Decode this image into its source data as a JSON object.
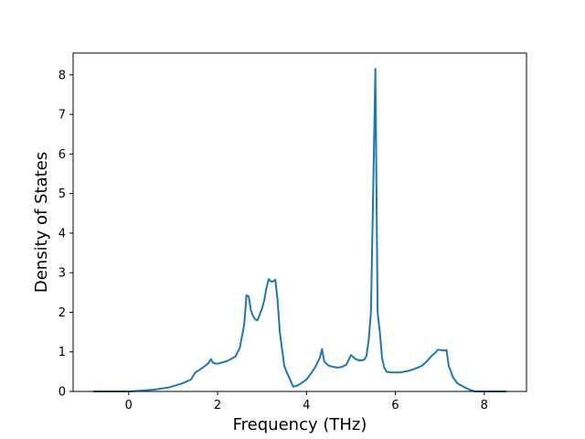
{
  "chart_data": {
    "type": "line",
    "xlabel": "Frequency (THz)",
    "ylabel": "Density of States",
    "xlim": [
      -1.25,
      8.95
    ],
    "ylim": [
      0,
      8.55
    ],
    "x_ticks": [
      0,
      2,
      4,
      6,
      8
    ],
    "y_ticks": [
      0,
      1,
      2,
      3,
      4,
      5,
      6,
      7,
      8
    ],
    "grid": false,
    "legend": "none",
    "line_color": "#1f77b4",
    "series": [
      {
        "x": [
          -0.8,
          0.0,
          0.3,
          0.6,
          0.9,
          1.2,
          1.4,
          1.5,
          1.6,
          1.7,
          1.8,
          1.85,
          1.9,
          2.0,
          2.2,
          2.4,
          2.5,
          2.6,
          2.65,
          2.7,
          2.75,
          2.8,
          2.85,
          2.9,
          2.95,
          3.0,
          3.05,
          3.1,
          3.15,
          3.2,
          3.25,
          3.3,
          3.35,
          3.4,
          3.5,
          3.55,
          3.6,
          3.7,
          3.8,
          3.9,
          4.0,
          4.1,
          4.2,
          4.3,
          4.35,
          4.4,
          4.5,
          4.6,
          4.7,
          4.8,
          4.9,
          5.0,
          5.1,
          5.2,
          5.3,
          5.35,
          5.4,
          5.45,
          5.5,
          5.55,
          5.6,
          5.65,
          5.7,
          5.75,
          5.8,
          5.9,
          6.0,
          6.1,
          6.2,
          6.3,
          6.4,
          6.5,
          6.6,
          6.7,
          6.8,
          6.85,
          6.9,
          6.95,
          7.0,
          7.1,
          7.15,
          7.2,
          7.3,
          7.4,
          7.5,
          7.6,
          7.7,
          7.8,
          8.0,
          8.5
        ],
        "y": [
          0.0,
          0.0,
          0.02,
          0.05,
          0.1,
          0.2,
          0.3,
          0.48,
          0.55,
          0.63,
          0.72,
          0.82,
          0.72,
          0.7,
          0.76,
          0.88,
          1.1,
          1.7,
          2.43,
          2.4,
          2.05,
          1.9,
          1.82,
          1.8,
          1.95,
          2.1,
          2.3,
          2.62,
          2.84,
          2.78,
          2.78,
          2.82,
          2.3,
          1.5,
          0.65,
          0.5,
          0.38,
          0.12,
          0.15,
          0.22,
          0.3,
          0.45,
          0.62,
          0.85,
          1.07,
          0.75,
          0.65,
          0.62,
          0.6,
          0.62,
          0.68,
          0.92,
          0.82,
          0.78,
          0.8,
          0.9,
          1.3,
          2.0,
          5.0,
          8.15,
          2.0,
          1.5,
          0.85,
          0.6,
          0.5,
          0.48,
          0.48,
          0.48,
          0.5,
          0.52,
          0.56,
          0.6,
          0.65,
          0.75,
          0.88,
          0.93,
          0.98,
          1.05,
          1.05,
          1.03,
          1.05,
          0.65,
          0.35,
          0.2,
          0.14,
          0.08,
          0.03,
          0.0,
          0.0,
          0.0
        ]
      }
    ]
  }
}
